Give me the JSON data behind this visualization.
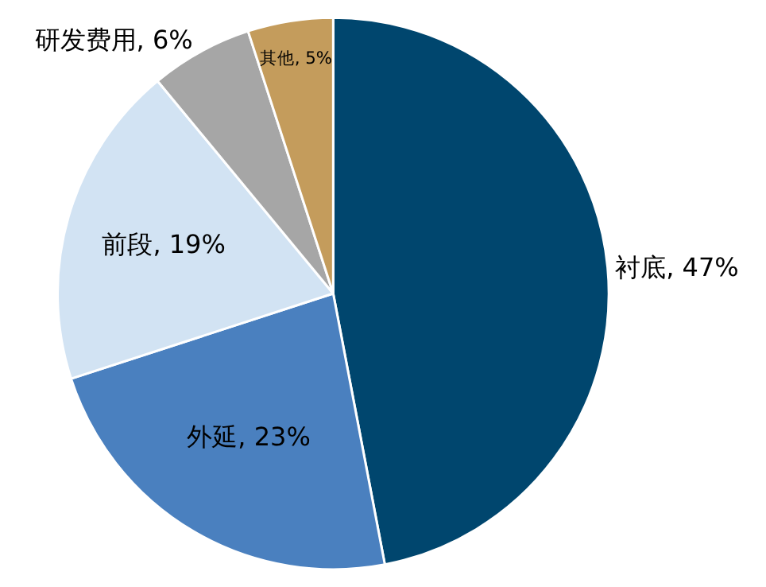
{
  "chart_data": {
    "type": "pie",
    "categories": [
      "衬底",
      "外延",
      "前段",
      "研发费用",
      "其他"
    ],
    "values": [
      47,
      23,
      19,
      6,
      5
    ],
    "value_labels": [
      "47%",
      "23%",
      "19%",
      "6%",
      "5%"
    ],
    "colors": [
      "#00466e",
      "#4a80bf",
      "#d2e3f3",
      "#a6a6a6",
      "#c49c5c"
    ],
    "legend": false
  }
}
